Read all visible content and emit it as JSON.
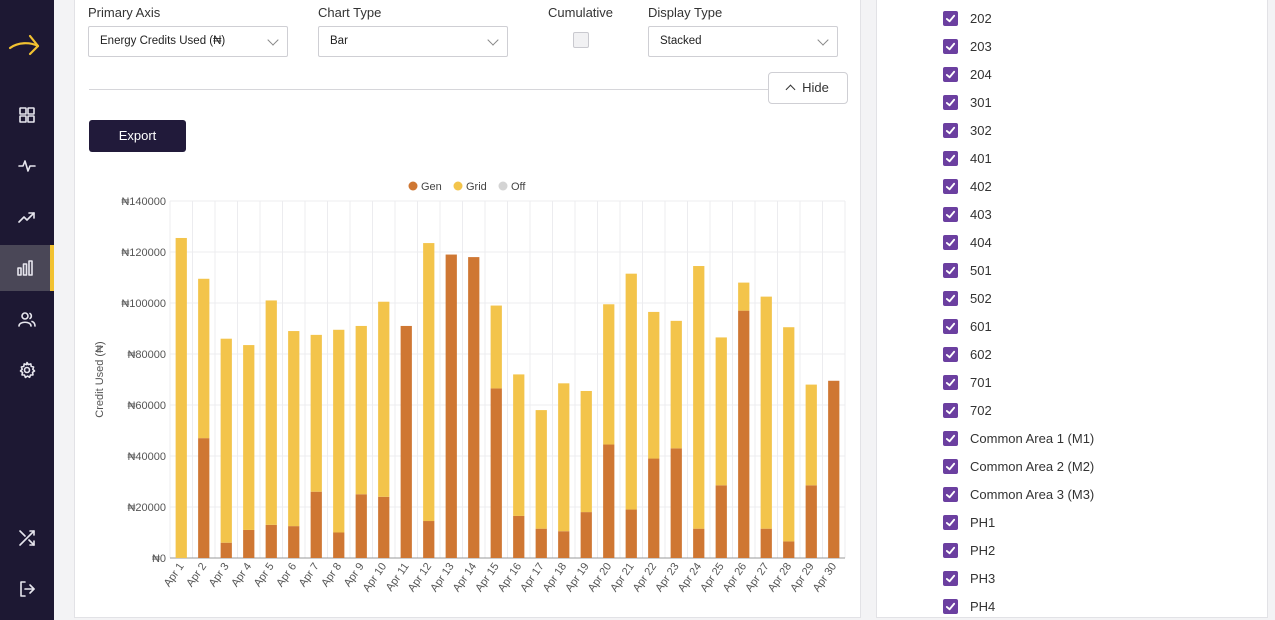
{
  "controls": {
    "primary_axis_label": "Primary Axis",
    "primary_axis_value": "Energy Credits Used (₦)",
    "chart_type_label": "Chart Type",
    "chart_type_value": "Bar",
    "cumulative_label": "Cumulative",
    "cumulative_checked": false,
    "display_type_label": "Display Type",
    "display_type_value": "Stacked",
    "hide_label": "Hide",
    "export_label": "Export"
  },
  "sidebar": {
    "items": [
      "dashboard-icon",
      "activity-icon",
      "trending-icon",
      "bar-chart-icon",
      "users-icon",
      "settings-icon",
      "shuffle-icon",
      "logout-icon"
    ],
    "active_index": 3,
    "accent_color": "#f2c231",
    "bg_color": "#1d1833"
  },
  "checklist": {
    "items": [
      "202",
      "203",
      "204",
      "301",
      "302",
      "401",
      "402",
      "403",
      "404",
      "501",
      "502",
      "601",
      "602",
      "701",
      "702",
      "Common Area 1 (M1)",
      "Common Area 2 (M2)",
      "Common Area 3 (M3)",
      "PH1",
      "PH2",
      "PH3",
      "PH4"
    ],
    "check_color": "#6b3fa0"
  },
  "chart_data": {
    "type": "bar",
    "stacked": true,
    "ylabel": "Credit Used (₦)",
    "ylim": [
      0,
      140000
    ],
    "yticks": [
      "₦0",
      "₦20000",
      "₦40000",
      "₦60000",
      "₦80000",
      "₦100000",
      "₦120000",
      "₦140000"
    ],
    "legend_position": "top",
    "grid": true,
    "categories": [
      "Apr 1",
      "Apr 2",
      "Apr 3",
      "Apr 4",
      "Apr 5",
      "Apr 6",
      "Apr 7",
      "Apr 8",
      "Apr 9",
      "Apr 10",
      "Apr 11",
      "Apr 12",
      "Apr 13",
      "Apr 14",
      "Apr 15",
      "Apr 16",
      "Apr 17",
      "Apr 18",
      "Apr 19",
      "Apr 20",
      "Apr 21",
      "Apr 22",
      "Apr 23",
      "Apr 24",
      "Apr 25",
      "Apr 26",
      "Apr 27",
      "Apr 28",
      "Apr 29",
      "Apr 30"
    ],
    "series": [
      {
        "name": "Gen",
        "color": "#cf7733",
        "values": [
          0,
          47000,
          6000,
          11000,
          13000,
          12500,
          26000,
          10000,
          25000,
          24000,
          91000,
          14500,
          119000,
          118000,
          66500,
          16500,
          11500,
          10500,
          18000,
          44500,
          19000,
          39000,
          43000,
          11500,
          28500,
          97000,
          11500,
          6500,
          28500,
          69500
        ]
      },
      {
        "name": "Grid",
        "color": "#f3c44b",
        "values": [
          125500,
          62500,
          80000,
          72500,
          88000,
          76500,
          61500,
          79500,
          66000,
          76500,
          0,
          109000,
          0,
          0,
          32500,
          55500,
          46500,
          58000,
          47500,
          55000,
          92500,
          57500,
          50000,
          103000,
          58000,
          11000,
          91000,
          84000,
          39500,
          0
        ]
      },
      {
        "name": "Off",
        "color": "#d4d4d4",
        "values": [
          0,
          0,
          0,
          0,
          0,
          0,
          0,
          0,
          0,
          0,
          0,
          0,
          0,
          0,
          0,
          0,
          0,
          0,
          0,
          0,
          0,
          0,
          0,
          0,
          0,
          0,
          0,
          0,
          0,
          0
        ]
      }
    ]
  }
}
